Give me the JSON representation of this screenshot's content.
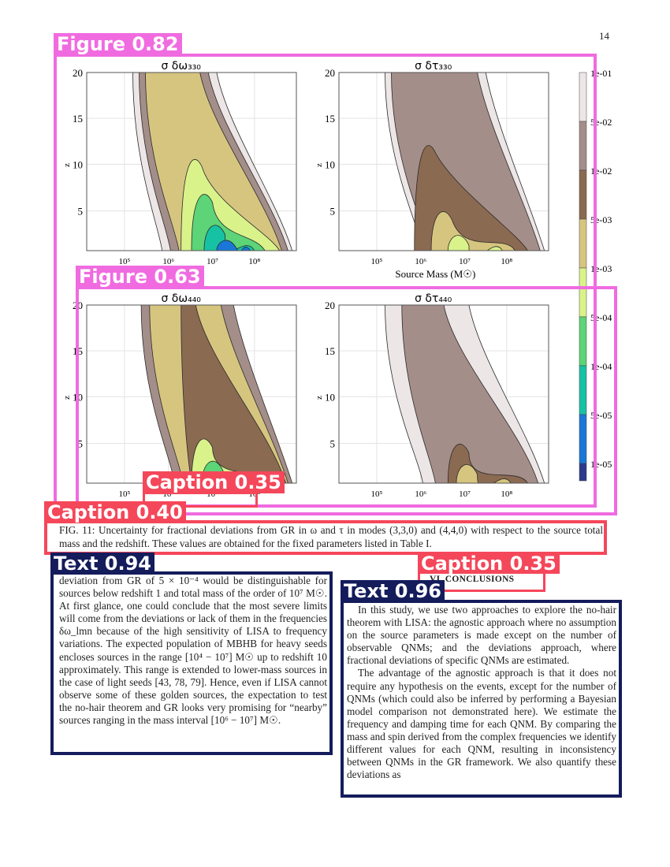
{
  "page": {
    "number": "14"
  },
  "figure": {
    "panel_titles": [
      "σ δω₃₃₀",
      "σ δτ₃₃₀",
      "σ δω₄₄₀",
      "σ δτ₄₄₀"
    ],
    "xlabel": "Source Mass (M☉)",
    "ylabel": "z",
    "xticks": [
      "10⁵",
      "10⁶",
      "10⁷",
      "10⁸"
    ],
    "yticks": [
      "5",
      "10",
      "15",
      "20"
    ],
    "colorbar_labels": [
      "1e-01",
      "5e-02",
      "1e-02",
      "5e-03",
      "1e-03",
      "5e-04",
      "1e-04",
      "5e-05",
      "1e-05"
    ],
    "colorbar_colors": [
      "#ede6e6",
      "#a48e89",
      "#8b6a52",
      "#d6c57f",
      "#d9f28a",
      "#5cd477",
      "#17c2a4",
      "#1a77d8",
      "#2d3a8c"
    ]
  },
  "caption": {
    "text": "FIG. 11: Uncertainty for fractional deviations from GR in ω and τ in modes (3,3,0) and (4,4,0) with respect to the source total mass and the redshift. These values are obtained for the fixed parameters listed in Table I."
  },
  "left_column": {
    "text": "deviation from GR of 5 × 10⁻⁴ would be distinguishable for sources below redshift 1 and total mass of the order of 10⁷ M☉. At first glance, one could conclude that the most severe limits will come from the deviations or lack of them in the frequencies δω_lmn because of the high sensitivity of LISA to frequency variations. The expected population of MBHB for heavy seeds encloses sources in the range [10⁴ − 10⁷] M☉ up to redshift 10 approximately. This range is extended to lower-mass sources in the case of light seeds [43, 78, 79]. Hence, even if LISA cannot observe some of these golden sources, the expectation to test the no-hair theorem and GR looks very promising for “nearby” sources ranging in the mass interval [10⁶ − 10⁷] M☉."
  },
  "section": {
    "heading": "VI. CONCLUSIONS"
  },
  "right_column": {
    "paragraphs": [
      "In this study, we use two approaches to explore the no-hair theorem with LISA: the agnostic approach where no assumption on the source parameters is made except on the number of observable QNMs; and the deviations approach, where fractional deviations of specific QNMs are estimated.",
      "The advantage of the agnostic approach is that it does not require any hypothesis on the events, except for the number of QNMs (which could also be inferred by performing a Bayesian model comparison not demonstrated here). We estimate the frequency and damping time for each QNM. By comparing the mass and spin derived from the complex frequencies we identify different values for each QNM, resulting in inconsistency between QNMs in the GR framework. We also quantify these deviations as"
    ]
  },
  "detections": [
    {
      "label": "Figure 0.82",
      "color": "#f06be0"
    },
    {
      "label": "Figure 0.63",
      "color": "#f06be0"
    },
    {
      "label": "Caption 0.35",
      "color": "#f5475a"
    },
    {
      "label": "Caption 0.40",
      "color": "#f5475a"
    },
    {
      "label": "Caption 0.35",
      "color": "#f5475a"
    },
    {
      "label": "Text 0.94",
      "color": "#141c5c"
    },
    {
      "label": "Text 0.96",
      "color": "#141c5c"
    }
  ]
}
